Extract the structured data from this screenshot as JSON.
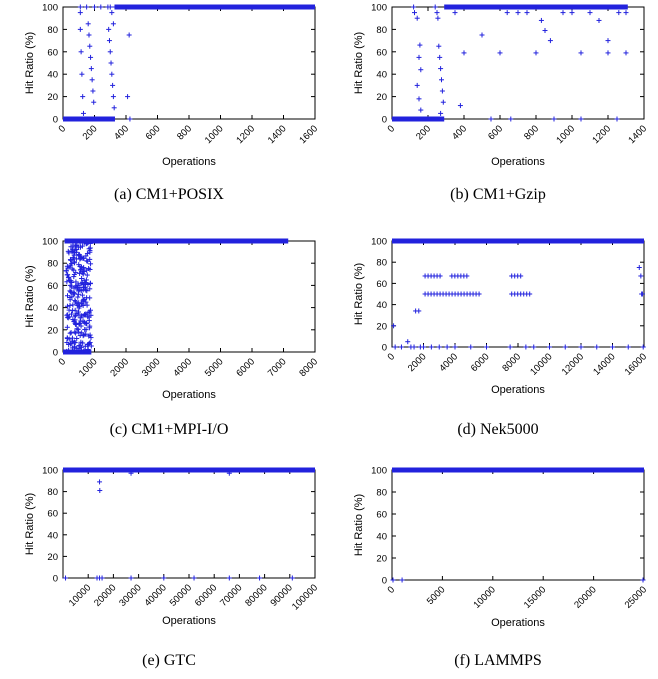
{
  "series_color": "#2222dd",
  "chart_data": [
    {
      "id": "a",
      "type": "scatter",
      "caption": "(a) CM1+POSIX",
      "xlabel": "Operations",
      "ylabel": "Hit Ratio (%)",
      "xlim": [
        0,
        1600
      ],
      "ylim": [
        0,
        100
      ],
      "xticks": [
        0,
        200,
        400,
        600,
        800,
        1000,
        1200,
        1400,
        1600
      ],
      "yticks": [
        0,
        20,
        40,
        60,
        80,
        100
      ],
      "x_tick_labels_rotated": true,
      "grid": false,
      "marker": "+",
      "plateau": {
        "x_from": 330,
        "x_to": 1600,
        "y": 100
      },
      "zero_run": {
        "x_from": 0,
        "x_to": 330,
        "y": 0
      },
      "points": [
        [
          110,
          100
        ],
        [
          150,
          100
        ],
        [
          200,
          100
        ],
        [
          240,
          100
        ],
        [
          300,
          100
        ],
        [
          330,
          100
        ],
        [
          110,
          95
        ],
        [
          110,
          80
        ],
        [
          115,
          60
        ],
        [
          120,
          40
        ],
        [
          125,
          20
        ],
        [
          130,
          5
        ],
        [
          160,
          85
        ],
        [
          165,
          75
        ],
        [
          170,
          65
        ],
        [
          175,
          55
        ],
        [
          180,
          45
        ],
        [
          185,
          35
        ],
        [
          190,
          25
        ],
        [
          195,
          15
        ],
        [
          285,
          100
        ],
        [
          290,
          80
        ],
        [
          295,
          70
        ],
        [
          300,
          60
        ],
        [
          305,
          50
        ],
        [
          310,
          40
        ],
        [
          315,
          30
        ],
        [
          320,
          20
        ],
        [
          325,
          10
        ],
        [
          310,
          95
        ],
        [
          320,
          85
        ],
        [
          420,
          75
        ],
        [
          410,
          20
        ],
        [
          425,
          0
        ],
        [
          415,
          100
        ]
      ]
    },
    {
      "id": "b",
      "type": "scatter",
      "caption": "(b) CM1+Gzip",
      "xlabel": "Operations",
      "ylabel": "Hit Ratio (%)",
      "xlim": [
        0,
        1400
      ],
      "ylim": [
        0,
        100
      ],
      "xticks": [
        0,
        200,
        400,
        600,
        800,
        1000,
        1200,
        1400
      ],
      "yticks": [
        0,
        20,
        40,
        60,
        80,
        100
      ],
      "x_tick_labels_rotated": true,
      "grid": false,
      "marker": "+",
      "plateau": {
        "x_from": 290,
        "x_to": 1310,
        "y": 100
      },
      "zero_run": {
        "x_from": 0,
        "x_to": 290,
        "y": 0
      },
      "points": [
        [
          120,
          100
        ],
        [
          125,
          95
        ],
        [
          140,
          90
        ],
        [
          155,
          66
        ],
        [
          150,
          55
        ],
        [
          160,
          44
        ],
        [
          140,
          30
        ],
        [
          150,
          18
        ],
        [
          160,
          8
        ],
        [
          240,
          100
        ],
        [
          250,
          95
        ],
        [
          255,
          90
        ],
        [
          260,
          65
        ],
        [
          265,
          55
        ],
        [
          270,
          45
        ],
        [
          275,
          35
        ],
        [
          280,
          25
        ],
        [
          285,
          15
        ],
        [
          270,
          5
        ],
        [
          350,
          95
        ],
        [
          380,
          12
        ],
        [
          400,
          59
        ],
        [
          500,
          75
        ],
        [
          550,
          0
        ],
        [
          600,
          59
        ],
        [
          640,
          95
        ],
        [
          660,
          0
        ],
        [
          700,
          95
        ],
        [
          750,
          95
        ],
        [
          800,
          59
        ],
        [
          830,
          88
        ],
        [
          850,
          79
        ],
        [
          880,
          70
        ],
        [
          900,
          0
        ],
        [
          950,
          95
        ],
        [
          1000,
          95
        ],
        [
          1050,
          0
        ],
        [
          1050,
          59
        ],
        [
          1100,
          95
        ],
        [
          1150,
          88
        ],
        [
          1200,
          70
        ],
        [
          1200,
          59
        ],
        [
          1250,
          0
        ],
        [
          1260,
          95
        ],
        [
          1300,
          59
        ],
        [
          1300,
          95
        ]
      ]
    },
    {
      "id": "c",
      "type": "scatter",
      "caption": "(c) CM1+MPI-I/O",
      "xlabel": "Operations",
      "ylabel": "Hit Ratio (%)",
      "xlim": [
        0,
        8000
      ],
      "ylim": [
        0,
        100
      ],
      "xticks": [
        0,
        1000,
        2000,
        3000,
        4000,
        5000,
        6000,
        7000,
        8000
      ],
      "yticks": [
        0,
        20,
        40,
        60,
        80,
        100
      ],
      "x_tick_labels_rotated": true,
      "grid": false,
      "marker": "+",
      "plateau": {
        "x_from": 50,
        "x_to": 7150,
        "y": 100
      },
      "zero_run": {
        "x_from": 0,
        "x_to": 900,
        "y": 0
      },
      "dense_band": {
        "x_from": 100,
        "x_to": 900,
        "y_from": 0,
        "y_to": 100
      },
      "points": []
    },
    {
      "id": "d",
      "type": "scatter",
      "caption": "(d) Nek5000",
      "xlabel": "Operations",
      "ylabel": "Hit Ratio (%)",
      "xlim": [
        0,
        16000
      ],
      "ylim": [
        0,
        100
      ],
      "xticks": [
        0,
        2000,
        4000,
        6000,
        8000,
        10000,
        12000,
        14000,
        16000
      ],
      "yticks": [
        0,
        20,
        40,
        60,
        80,
        100
      ],
      "x_tick_labels_rotated": true,
      "grid": false,
      "marker": "+",
      "plateau": {
        "x_from": 0,
        "x_to": 16000,
        "y": 100
      },
      "bands": [
        {
          "x_from": 2100,
          "x_to": 3200,
          "y": 67
        },
        {
          "x_from": 3800,
          "x_to": 4900,
          "y": 67
        },
        {
          "x_from": 7600,
          "x_to": 8300,
          "y": 67
        },
        {
          "x_from": 2100,
          "x_to": 5600,
          "y": 50
        },
        {
          "x_from": 7600,
          "x_to": 8800,
          "y": 50
        }
      ],
      "points": [
        [
          100,
          20
        ],
        [
          200,
          0
        ],
        [
          600,
          0
        ],
        [
          1000,
          5
        ],
        [
          1200,
          0
        ],
        [
          1500,
          34
        ],
        [
          1700,
          34
        ],
        [
          1400,
          0
        ],
        [
          1800,
          0
        ],
        [
          2000,
          0
        ],
        [
          2500,
          0
        ],
        [
          3000,
          0
        ],
        [
          3500,
          0
        ],
        [
          4000,
          0
        ],
        [
          5000,
          0
        ],
        [
          6000,
          0
        ],
        [
          7500,
          0
        ],
        [
          8500,
          0
        ],
        [
          9000,
          0
        ],
        [
          10000,
          0
        ],
        [
          11000,
          0
        ],
        [
          12000,
          0
        ],
        [
          13000,
          0
        ],
        [
          14000,
          0
        ],
        [
          15000,
          0
        ],
        [
          15700,
          75
        ],
        [
          15800,
          67
        ],
        [
          15850,
          50
        ],
        [
          15900,
          50
        ],
        [
          15950,
          0
        ]
      ]
    },
    {
      "id": "e",
      "type": "scatter",
      "caption": "(e) GTC",
      "xlabel": "Operations",
      "ylabel": "Hit Ratio (%)",
      "xlim": [
        0,
        100000
      ],
      "ylim": [
        0,
        100
      ],
      "xticks": [
        10000,
        20000,
        30000,
        40000,
        50000,
        60000,
        70000,
        80000,
        90000,
        100000
      ],
      "yticks": [
        0,
        20,
        40,
        60,
        80,
        100
      ],
      "x_tick_labels_rotated": true,
      "grid": false,
      "marker": "+",
      "plateau": {
        "x_from": 0,
        "x_to": 100000,
        "y": 100
      },
      "points": [
        [
          1000,
          0
        ],
        [
          14500,
          89
        ],
        [
          14600,
          81
        ],
        [
          13500,
          0
        ],
        [
          14500,
          0
        ],
        [
          15500,
          0
        ],
        [
          27000,
          0
        ],
        [
          27000,
          97
        ],
        [
          40000,
          0
        ],
        [
          52000,
          0
        ],
        [
          66000,
          0
        ],
        [
          66000,
          97
        ],
        [
          78000,
          0
        ],
        [
          91000,
          0
        ]
      ]
    },
    {
      "id": "f",
      "type": "scatter",
      "caption": "(f) LAMMPS",
      "xlabel": "Operations",
      "ylabel": "Hit Ratio (%)",
      "xlim": [
        0,
        25000
      ],
      "ylim": [
        0,
        100
      ],
      "xticks": [
        0,
        5000,
        10000,
        15000,
        20000,
        25000
      ],
      "yticks": [
        0,
        20,
        40,
        60,
        80,
        100
      ],
      "x_tick_labels_rotated": true,
      "grid": false,
      "marker": "+",
      "plateau": {
        "x_from": 0,
        "x_to": 25000,
        "y": 100
      },
      "points": [
        [
          100,
          0
        ],
        [
          1000,
          0
        ],
        [
          24900,
          0
        ]
      ]
    }
  ]
}
